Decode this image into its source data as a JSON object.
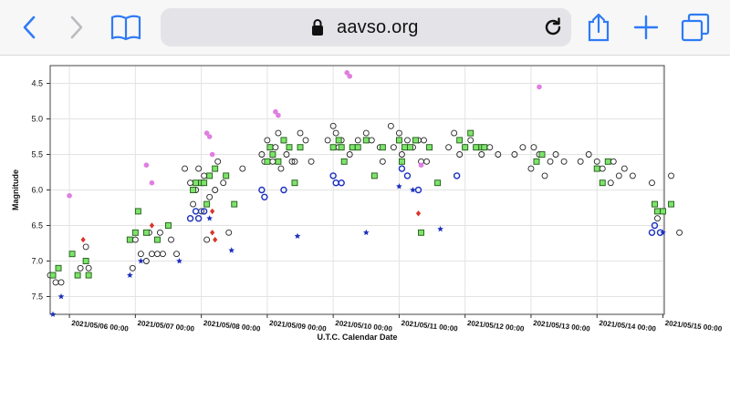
{
  "browser": {
    "url": "aavso.org",
    "icons": [
      "back-chevron-icon",
      "forward-chevron-icon",
      "bookmarks-book-icon",
      "lock-icon",
      "reload-icon",
      "share-icon",
      "new-tab-plus-icon",
      "tabs-overview-icon"
    ],
    "accent": "#2f7bf5"
  },
  "chart_data": {
    "type": "scatter",
    "title": "",
    "xlabel": "U.T.C. Calendar Date",
    "ylabel": "Magnitude",
    "ylim": [
      7.75,
      4.25
    ],
    "y_inverted": true,
    "xlim": [
      "2021/05/05 17:00",
      "2021/05/15 00:30"
    ],
    "grid": true,
    "legend": "none",
    "y_ticks": [
      4.5,
      5.0,
      5.5,
      6.0,
      6.5,
      7.0,
      7.5
    ],
    "y_tick_labels": [
      "4.5",
      "5.0",
      "5.5",
      "6.0",
      "6.5",
      "7.0",
      "7.5"
    ],
    "x_ticks": [
      "2021/05/06 00:00",
      "2021/05/07 00:00",
      "2021/05/08 00:00",
      "2021/05/09 00:00",
      "2021/05/10 00:00",
      "2021/05/11 00:00",
      "2021/05/12 00:00",
      "2021/05/13 00:00",
      "2021/05/14 00:00",
      "2021/05/15 00:00"
    ],
    "x_tick_labels": [
      "2021/05/06 00:00",
      "2021/05/07 00:00",
      "2021/05/08 00:00",
      "2021/05/09 00:00",
      "2021/05/10 00:00",
      "2021/05/11 00:00",
      "2021/05/12 00:00",
      "2021/05/13 00:00",
      "2021/05/14 00:00",
      "2021/05/15 00:00"
    ],
    "series": [
      {
        "marker": "open-circle",
        "color": "#222222",
        "points": [
          [
            "2021/05/05 17:00",
            7.2
          ],
          [
            "2021/05/05 19:00",
            7.3
          ],
          [
            "2021/05/05 21:00",
            7.3
          ],
          [
            "2021/05/06 04:00",
            7.1
          ],
          [
            "2021/05/06 06:00",
            6.8
          ],
          [
            "2021/05/06 07:00",
            7.1
          ],
          [
            "2021/05/06 23:00",
            7.1
          ],
          [
            "2021/05/07 00:00",
            6.7
          ],
          [
            "2021/05/07 02:00",
            6.9
          ],
          [
            "2021/05/07 04:00",
            7.0
          ],
          [
            "2021/05/07 05:00",
            6.6
          ],
          [
            "2021/05/07 06:00",
            6.9
          ],
          [
            "2021/05/07 08:00",
            6.9
          ],
          [
            "2021/05/07 09:00",
            6.6
          ],
          [
            "2021/05/07 10:00",
            6.9
          ],
          [
            "2021/05/07 13:00",
            6.7
          ],
          [
            "2021/05/07 15:00",
            6.9
          ],
          [
            "2021/05/07 18:00",
            5.7
          ],
          [
            "2021/05/07 20:00",
            5.9
          ],
          [
            "2021/05/07 21:00",
            6.2
          ],
          [
            "2021/05/07 22:00",
            6.0
          ],
          [
            "2021/05/07 23:00",
            5.7
          ],
          [
            "2021/05/08 00:00",
            6.3
          ],
          [
            "2021/05/08 01:00",
            5.8
          ],
          [
            "2021/05/08 02:00",
            6.7
          ],
          [
            "2021/05/08 03:00",
            6.1
          ],
          [
            "2021/05/08 05:00",
            6.0
          ],
          [
            "2021/05/08 06:00",
            5.6
          ],
          [
            "2021/05/08 08:00",
            5.9
          ],
          [
            "2021/05/08 09:00",
            5.8
          ],
          [
            "2021/05/08 10:00",
            6.6
          ],
          [
            "2021/05/08 15:00",
            5.7
          ],
          [
            "2021/05/08 22:00",
            5.5
          ],
          [
            "2021/05/08 23:00",
            5.6
          ],
          [
            "2021/05/09 00:00",
            5.3
          ],
          [
            "2021/05/09 01:00",
            5.4
          ],
          [
            "2021/05/09 02:00",
            5.6
          ],
          [
            "2021/05/09 03:00",
            5.4
          ],
          [
            "2021/05/09 04:00",
            5.2
          ],
          [
            "2021/05/09 05:00",
            5.7
          ],
          [
            "2021/05/09 06:00",
            5.3
          ],
          [
            "2021/05/09 07:00",
            5.5
          ],
          [
            "2021/05/09 09:00",
            5.6
          ],
          [
            "2021/05/09 10:00",
            5.6
          ],
          [
            "2021/05/09 12:00",
            5.2
          ],
          [
            "2021/05/09 14:00",
            5.3
          ],
          [
            "2021/05/09 16:00",
            5.6
          ],
          [
            "2021/05/09 22:00",
            5.3
          ],
          [
            "2021/05/10 00:00",
            5.1
          ],
          [
            "2021/05/10 01:00",
            5.2
          ],
          [
            "2021/05/10 02:00",
            5.4
          ],
          [
            "2021/05/10 03:00",
            5.3
          ],
          [
            "2021/05/10 06:00",
            5.5
          ],
          [
            "2021/05/10 09:00",
            5.3
          ],
          [
            "2021/05/10 12:00",
            5.2
          ],
          [
            "2021/05/10 14:00",
            5.3
          ],
          [
            "2021/05/10 17:00",
            5.4
          ],
          [
            "2021/05/10 18:00",
            5.6
          ],
          [
            "2021/05/10 21:00",
            5.1
          ],
          [
            "2021/05/10 22:00",
            5.4
          ],
          [
            "2021/05/11 00:00",
            5.2
          ],
          [
            "2021/05/11 01:00",
            5.5
          ],
          [
            "2021/05/11 03:00",
            5.3
          ],
          [
            "2021/05/11 05:00",
            5.4
          ],
          [
            "2021/05/11 07:00",
            5.3
          ],
          [
            "2021/05/11 08:00",
            5.6
          ],
          [
            "2021/05/11 09:00",
            5.3
          ],
          [
            "2021/05/11 10:00",
            5.6
          ],
          [
            "2021/05/11 18:00",
            5.4
          ],
          [
            "2021/05/11 20:00",
            5.2
          ],
          [
            "2021/05/11 22:00",
            5.5
          ],
          [
            "2021/05/12 00:00",
            5.4
          ],
          [
            "2021/05/12 02:00",
            5.3
          ],
          [
            "2021/05/12 04:00",
            5.4
          ],
          [
            "2021/05/12 06:00",
            5.5
          ],
          [
            "2021/05/12 09:00",
            5.4
          ],
          [
            "2021/05/12 12:00",
            5.5
          ],
          [
            "2021/05/12 18:00",
            5.5
          ],
          [
            "2021/05/12 21:00",
            5.4
          ],
          [
            "2021/05/13 00:00",
            5.7
          ],
          [
            "2021/05/13 01:00",
            5.4
          ],
          [
            "2021/05/13 03:00",
            5.5
          ],
          [
            "2021/05/13 05:00",
            5.8
          ],
          [
            "2021/05/13 07:00",
            5.6
          ],
          [
            "2021/05/13 09:00",
            5.5
          ],
          [
            "2021/05/13 12:00",
            5.6
          ],
          [
            "2021/05/13 18:00",
            5.6
          ],
          [
            "2021/05/13 21:00",
            5.5
          ],
          [
            "2021/05/14 00:00",
            5.6
          ],
          [
            "2021/05/14 02:00",
            5.7
          ],
          [
            "2021/05/14 05:00",
            5.9
          ],
          [
            "2021/05/14 06:00",
            5.6
          ],
          [
            "2021/05/14 08:00",
            5.8
          ],
          [
            "2021/05/14 10:00",
            5.7
          ],
          [
            "2021/05/14 13:00",
            5.8
          ],
          [
            "2021/05/14 20:00",
            5.9
          ],
          [
            "2021/05/14 22:00",
            6.4
          ],
          [
            "2021/05/15 03:00",
            5.8
          ],
          [
            "2021/05/15 06:00",
            6.6
          ]
        ]
      },
      {
        "marker": "green-square",
        "color": "#7ee36c",
        "points": [
          [
            "2021/05/05 18:00",
            7.2
          ],
          [
            "2021/05/05 20:00",
            7.1
          ],
          [
            "2021/05/06 01:00",
            6.9
          ],
          [
            "2021/05/06 03:00",
            7.2
          ],
          [
            "2021/05/06 06:00",
            7.0
          ],
          [
            "2021/05/06 07:00",
            7.2
          ],
          [
            "2021/05/06 22:00",
            6.7
          ],
          [
            "2021/05/07 00:00",
            6.6
          ],
          [
            "2021/05/07 01:00",
            6.3
          ],
          [
            "2021/05/07 04:00",
            6.6
          ],
          [
            "2021/05/07 08:00",
            6.7
          ],
          [
            "2021/05/07 12:00",
            6.5
          ],
          [
            "2021/05/07 21:00",
            6.0
          ],
          [
            "2021/05/07 22:00",
            5.9
          ],
          [
            "2021/05/08 00:00",
            5.9
          ],
          [
            "2021/05/08 01:00",
            5.9
          ],
          [
            "2021/05/08 02:00",
            6.2
          ],
          [
            "2021/05/08 03:00",
            5.8
          ],
          [
            "2021/05/08 05:00",
            5.7
          ],
          [
            "2021/05/08 09:00",
            5.8
          ],
          [
            "2021/05/08 12:00",
            6.2
          ],
          [
            "2021/05/09 00:00",
            5.6
          ],
          [
            "2021/05/09 01:00",
            5.4
          ],
          [
            "2021/05/09 02:00",
            5.5
          ],
          [
            "2021/05/09 04:00",
            5.6
          ],
          [
            "2021/05/09 06:00",
            5.3
          ],
          [
            "2021/05/09 08:00",
            5.4
          ],
          [
            "2021/05/09 10:00",
            5.9
          ],
          [
            "2021/05/09 12:00",
            5.4
          ],
          [
            "2021/05/10 00:00",
            5.4
          ],
          [
            "2021/05/10 02:00",
            5.3
          ],
          [
            "2021/05/10 03:00",
            5.4
          ],
          [
            "2021/05/10 04:00",
            5.6
          ],
          [
            "2021/05/10 07:00",
            5.4
          ],
          [
            "2021/05/10 09:00",
            5.4
          ],
          [
            "2021/05/10 12:00",
            5.3
          ],
          [
            "2021/05/10 15:00",
            5.8
          ],
          [
            "2021/05/10 18:00",
            5.4
          ],
          [
            "2021/05/11 00:00",
            5.3
          ],
          [
            "2021/05/11 01:00",
            5.6
          ],
          [
            "2021/05/11 02:00",
            5.4
          ],
          [
            "2021/05/11 04:00",
            5.4
          ],
          [
            "2021/05/11 06:00",
            5.3
          ],
          [
            "2021/05/11 08:00",
            6.6
          ],
          [
            "2021/05/11 11:00",
            5.4
          ],
          [
            "2021/05/11 14:00",
            5.9
          ],
          [
            "2021/05/11 22:00",
            5.3
          ],
          [
            "2021/05/12 00:00",
            5.4
          ],
          [
            "2021/05/12 02:00",
            5.2
          ],
          [
            "2021/05/12 04:00",
            5.4
          ],
          [
            "2021/05/12 06:00",
            5.4
          ],
          [
            "2021/05/12 07:00",
            5.4
          ],
          [
            "2021/05/13 02:00",
            5.6
          ],
          [
            "2021/05/13 04:00",
            5.5
          ],
          [
            "2021/05/14 00:00",
            5.7
          ],
          [
            "2021/05/14 02:00",
            5.9
          ],
          [
            "2021/05/14 04:00",
            5.6
          ],
          [
            "2021/05/14 21:00",
            6.2
          ],
          [
            "2021/05/14 22:00",
            6.3
          ],
          [
            "2021/05/15 00:00",
            6.3
          ],
          [
            "2021/05/15 03:00",
            6.2
          ]
        ]
      },
      {
        "marker": "blue-circle",
        "color": "#1a2fbf",
        "points": [
          [
            "2021/05/07 20:00",
            6.4
          ],
          [
            "2021/05/07 22:00",
            6.3
          ],
          [
            "2021/05/07 23:00",
            6.4
          ],
          [
            "2021/05/08 01:00",
            6.3
          ],
          [
            "2021/05/08 22:00",
            6.0
          ],
          [
            "2021/05/08 23:00",
            6.1
          ],
          [
            "2021/05/09 06:00",
            6.0
          ],
          [
            "2021/05/10 00:00",
            5.8
          ],
          [
            "2021/05/10 01:00",
            5.9
          ],
          [
            "2021/05/10 03:00",
            5.9
          ],
          [
            "2021/05/11 01:00",
            5.7
          ],
          [
            "2021/05/11 03:00",
            5.8
          ],
          [
            "2021/05/11 07:00",
            6.0
          ],
          [
            "2021/05/11 21:00",
            5.8
          ],
          [
            "2021/05/14 20:00",
            6.6
          ],
          [
            "2021/05/14 21:00",
            6.5
          ],
          [
            "2021/05/14 23:00",
            6.6
          ]
        ]
      },
      {
        "marker": "blue-star",
        "color": "#1a2fbf",
        "points": [
          [
            "2021/05/05 18:00",
            7.75
          ],
          [
            "2021/05/05 21:00",
            7.5
          ],
          [
            "2021/05/06 22:00",
            7.2
          ],
          [
            "2021/05/07 02:00",
            7.0
          ],
          [
            "2021/05/07 16:00",
            7.0
          ],
          [
            "2021/05/08 03:00",
            6.4
          ],
          [
            "2021/05/08 11:00",
            6.85
          ],
          [
            "2021/05/09 11:00",
            6.65
          ],
          [
            "2021/05/10 12:00",
            6.6
          ],
          [
            "2021/05/11 00:00",
            5.95
          ],
          [
            "2021/05/11 05:00",
            6.0
          ],
          [
            "2021/05/11 15:00",
            6.55
          ],
          [
            "2021/05/15 00:00",
            6.6
          ]
        ]
      },
      {
        "marker": "pink-circle",
        "color": "#e07ee0",
        "points": [
          [
            "2021/05/06 00:00",
            6.08
          ],
          [
            "2021/05/07 04:00",
            5.65
          ],
          [
            "2021/05/07 06:00",
            5.9
          ],
          [
            "2021/05/08 02:00",
            5.2
          ],
          [
            "2021/05/08 03:00",
            5.25
          ],
          [
            "2021/05/08 04:00",
            5.5
          ],
          [
            "2021/05/09 03:00",
            4.9
          ],
          [
            "2021/05/09 04:00",
            4.95
          ],
          [
            "2021/05/10 05:00",
            4.35
          ],
          [
            "2021/05/10 06:00",
            4.4
          ],
          [
            "2021/05/11 08:00",
            5.65
          ],
          [
            "2021/05/13 03:00",
            4.55
          ]
        ]
      },
      {
        "marker": "red-diamond",
        "color": "#d8362a",
        "points": [
          [
            "2021/05/06 05:00",
            6.7
          ],
          [
            "2021/05/07 06:00",
            6.5
          ],
          [
            "2021/05/08 04:00",
            6.3
          ],
          [
            "2021/05/08 04:00",
            6.6
          ],
          [
            "2021/05/08 05:00",
            6.7
          ],
          [
            "2021/05/11 07:00",
            6.33
          ]
        ]
      }
    ]
  }
}
